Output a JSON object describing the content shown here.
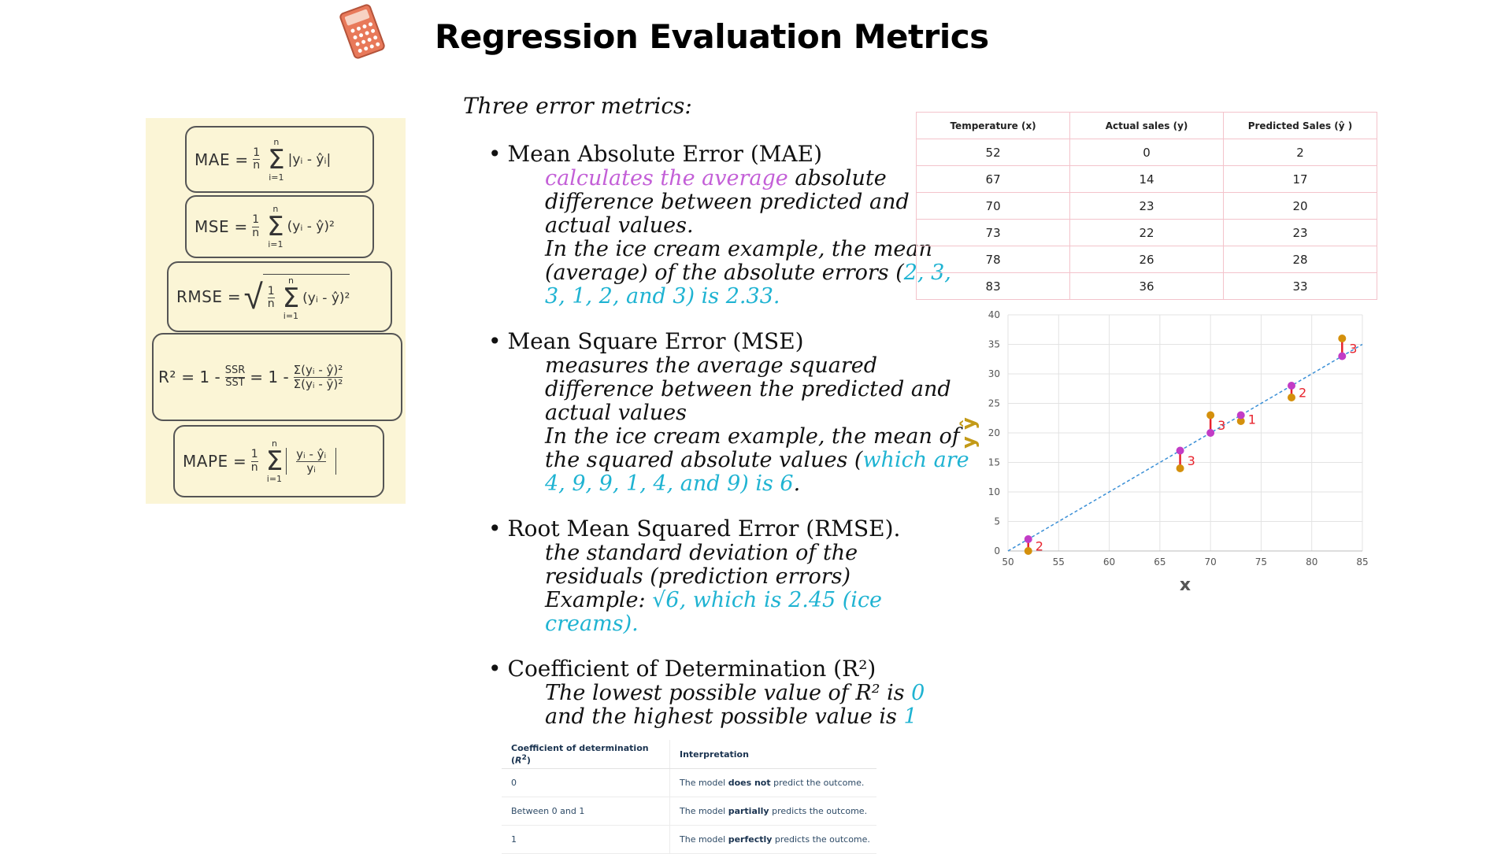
{
  "title": "Regression Evaluation Metrics",
  "icons": {
    "header": "calculator-icon"
  },
  "intro": "Three error metrics:",
  "formulas": [
    {
      "label": "MAE",
      "frac_num": "1",
      "frac_den": "n",
      "sum_top": "n",
      "sum_bottom": "i=1",
      "body": "|yᵢ - ŷᵢ|"
    },
    {
      "label": "MSE",
      "frac_num": "1",
      "frac_den": "n",
      "sum_top": "n",
      "sum_bottom": "i=1",
      "body": "(yᵢ - ŷ)²"
    },
    {
      "label": "RMSE",
      "frac_num": "1",
      "frac_den": "n",
      "sum_top": "n",
      "sum_bottom": "i=1",
      "body": "(yᵢ - ŷ)²"
    },
    {
      "label": "R²",
      "mid": "= 1 -",
      "ssr": "SSR",
      "sst": "SST",
      "num": "Σ(yᵢ - ŷ)²",
      "den": "Σ(yᵢ - ȳ)²",
      "sum_sub": "i"
    },
    {
      "label": "MAPE",
      "frac_num": "1",
      "frac_den": "n",
      "sum_top": "n",
      "sum_bottom": "i=1",
      "num": "yᵢ - ŷᵢ",
      "den": "yᵢ"
    }
  ],
  "sections": [
    {
      "heading": "Mean Absolute Error (MAE)",
      "lines": [
        [
          {
            "t": "calculates the average",
            "c": "pink"
          },
          {
            "t": " absolute",
            "c": ""
          }
        ],
        [
          {
            "t": "difference between predicted and",
            "c": ""
          }
        ],
        [
          {
            "t": "actual values.",
            "c": ""
          }
        ],
        [
          {
            "t": "In the ice cream example, the mean",
            "c": ""
          }
        ],
        [
          {
            "t": "(average) of the absolute errors (",
            "c": ""
          },
          {
            "t": "2, 3,",
            "c": "cyan"
          }
        ],
        [
          {
            "t": "3, 1, 2, and 3) is 2.33.",
            "c": "cyan"
          }
        ]
      ]
    },
    {
      "heading": "Mean Square Error (MSE)",
      "lines": [
        [
          {
            "t": "measures the average squared",
            "c": ""
          }
        ],
        [
          {
            "t": "difference between the predicted and",
            "c": ""
          }
        ],
        [
          {
            "t": "actual values",
            "c": ""
          }
        ],
        [
          {
            "t": "In the ice cream example, the mean of",
            "c": ""
          }
        ],
        [
          {
            "t": "the squared absolute values (",
            "c": ""
          },
          {
            "t": "which are",
            "c": "cyan"
          }
        ],
        [
          {
            "t": "4, 9, 9, 1, 4, and 9) is 6",
            "c": "cyan"
          },
          {
            "t": ".",
            "c": ""
          }
        ]
      ]
    },
    {
      "heading": "Root Mean Squared Error (RMSE).",
      "lines": [
        [
          {
            "t": "the standard deviation of the",
            "c": ""
          }
        ],
        [
          {
            "t": "residuals (prediction errors)",
            "c": ""
          }
        ],
        [
          {
            "t": "Example: ",
            "c": ""
          },
          {
            "t": "√6, which is 2.45 (ice",
            "c": "cyan"
          }
        ],
        [
          {
            "t": "creams).",
            "c": "cyan"
          }
        ]
      ]
    },
    {
      "heading": "Coefficient of Determination (R²)",
      "lines": [
        [
          {
            "t": "The lowest possible value of R² is ",
            "c": ""
          },
          {
            "t": "0",
            "c": "cyan"
          }
        ],
        [
          {
            "t": "and the highest possible value is ",
            "c": ""
          },
          {
            "t": "1",
            "c": "cyan"
          }
        ]
      ]
    }
  ],
  "data_table": {
    "headers": [
      "Temperature (x)",
      "Actual sales (y)",
      "Predicted Sales (ŷ )"
    ],
    "rows": [
      [
        "52",
        "0",
        "2"
      ],
      [
        "67",
        "14",
        "17"
      ],
      [
        "70",
        "23",
        "20"
      ],
      [
        "73",
        "22",
        "23"
      ],
      [
        "78",
        "26",
        "28"
      ],
      [
        "83",
        "36",
        "33"
      ]
    ]
  },
  "interp_table": {
    "headers": [
      "Coefficient of determination (R²)",
      "Interpretation"
    ],
    "rows": [
      {
        "value": "0",
        "pre": "The model ",
        "bold": "does not",
        "post": " predict the outcome."
      },
      {
        "value": "Between 0 and 1",
        "pre": "The model ",
        "bold": "partially",
        "post": " predicts the outcome."
      },
      {
        "value": "1",
        "pre": "The model ",
        "bold": "perfectly",
        "post": " predicts the outcome."
      }
    ]
  },
  "colors": {
    "pink": "#c35fd7",
    "cyan": "#1fb3d2",
    "actual": "#d4900c",
    "predicted": "#c23cc6",
    "error": "#e8232d",
    "fit_line": "#3a8fd6",
    "y_label": "#c39a17",
    "panel": "#fbf5d6"
  },
  "chart_data": {
    "type": "scatter",
    "xlabel": "x",
    "ylabel": "y ŷ",
    "xlim": [
      50,
      85
    ],
    "ylim": [
      0,
      40
    ],
    "x_ticks": [
      50,
      55,
      60,
      65,
      70,
      75,
      80,
      85
    ],
    "y_ticks": [
      0,
      5,
      10,
      15,
      20,
      25,
      30,
      35,
      40
    ],
    "grid": true,
    "series": [
      {
        "points": [
          [
            52,
            0
          ],
          [
            67,
            14
          ],
          [
            70,
            23
          ],
          [
            73,
            22
          ],
          [
            78,
            26
          ],
          [
            83,
            36
          ]
        ]
      },
      {
        "points": [
          [
            52,
            2
          ],
          [
            67,
            17
          ],
          [
            70,
            20
          ],
          [
            73,
            23
          ],
          [
            78,
            28
          ],
          [
            83,
            33
          ]
        ]
      }
    ],
    "fit_line": [
      [
        50,
        0
      ],
      [
        85,
        35
      ]
    ],
    "error_labels": [
      {
        "x": 52,
        "text": "2"
      },
      {
        "x": 67,
        "text": "3"
      },
      {
        "x": 70,
        "text": "3"
      },
      {
        "x": 73,
        "text": "1"
      },
      {
        "x": 78,
        "text": "2"
      },
      {
        "x": 83,
        "text": "3"
      }
    ]
  }
}
